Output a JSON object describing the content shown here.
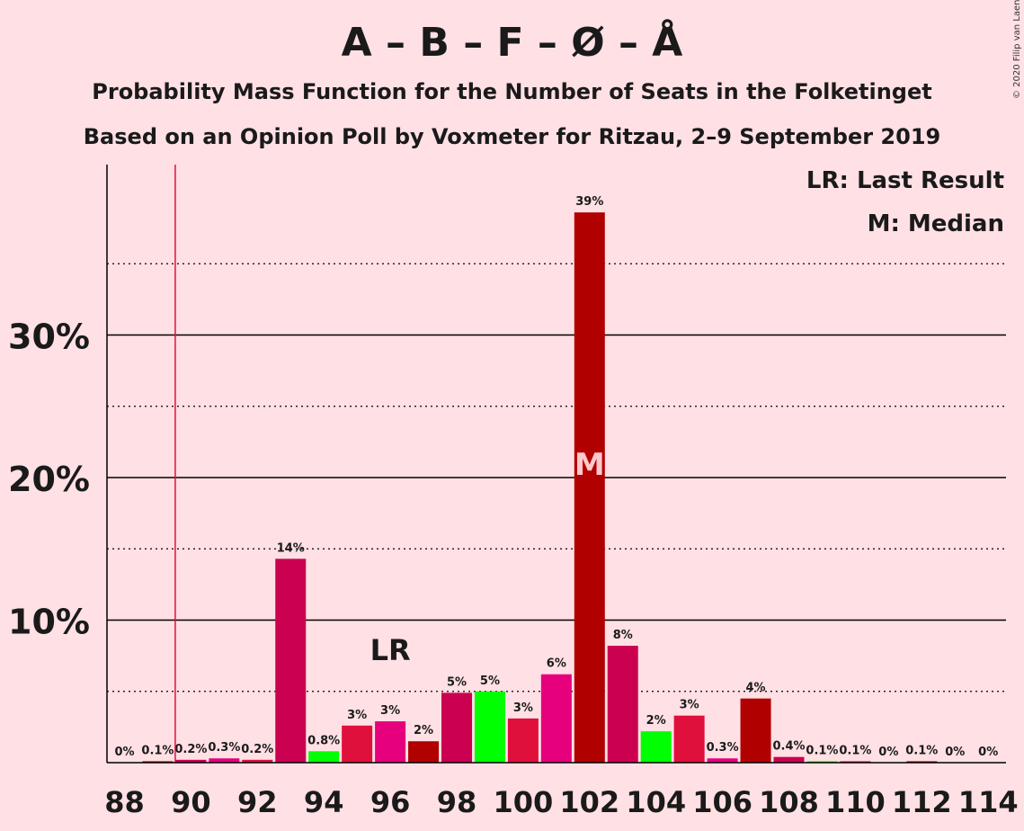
{
  "title": "A – B – F – Ø – Å",
  "subtitle1": "Probability Mass Function for the Number of Seats in the Folketinget",
  "subtitle2": "Based on an Opinion Poll by Voxmeter for Ritzau, 2–9 September 2019",
  "credit": "© 2020 Filip van Laenen",
  "legend": {
    "lr": "LR: Last Result",
    "m": "M: Median"
  },
  "colors": {
    "background": "#ffe0e5",
    "crimson": "#e0103c",
    "dark_red": "#b00000",
    "deep_pink": "#cc0050",
    "magenta": "#e6007e",
    "green": "#00ff00",
    "last_result_line": "#e0103c"
  },
  "chart_data": {
    "type": "bar",
    "x": [
      88,
      89,
      90,
      91,
      92,
      93,
      94,
      95,
      96,
      97,
      98,
      99,
      100,
      101,
      102,
      103,
      104,
      105,
      106,
      107,
      108,
      109,
      110,
      111,
      112,
      113,
      114
    ],
    "values": [
      0,
      0.1,
      0.2,
      0.3,
      0.2,
      14.3,
      0.8,
      2.6,
      2.9,
      1.5,
      4.9,
      5.0,
      3.1,
      6.2,
      38.6,
      8.2,
      2.2,
      3.3,
      0.3,
      4.5,
      0.4,
      0.1,
      0.1,
      0,
      0.1,
      0,
      0
    ],
    "labels": [
      "0%",
      "0.1%",
      "0.2%",
      "0.3%",
      "0.2%",
      "14%",
      "0.8%",
      "3%",
      "3%",
      "2%",
      "5%",
      "5%",
      "3%",
      "6%",
      "39%",
      "8%",
      "2%",
      "3%",
      "0.3%",
      "4%",
      "0.4%",
      "0.1%",
      "0.1%",
      "0%",
      "0.1%",
      "0%",
      "0%"
    ],
    "bar_colors": [
      "crimson",
      "dark_red",
      "deep_pink",
      "magenta",
      "crimson",
      "deep_pink",
      "green",
      "crimson",
      "magenta",
      "dark_red",
      "deep_pink",
      "green",
      "crimson",
      "magenta",
      "dark_red",
      "deep_pink",
      "green",
      "crimson",
      "magenta",
      "dark_red",
      "deep_pink",
      "green",
      "crimson",
      "magenta",
      "dark_red",
      "deep_pink",
      "green"
    ],
    "x_tick_labels": [
      "88",
      "90",
      "92",
      "94",
      "96",
      "98",
      "100",
      "102",
      "104",
      "106",
      "108",
      "110",
      "112",
      "114"
    ],
    "y_tick_labels": [
      "10%",
      "20%",
      "30%"
    ],
    "y_ticks": [
      10,
      20,
      30
    ],
    "ylim": [
      0,
      42
    ],
    "last_result": 89.5,
    "last_result_label": "LR",
    "last_result_label_x": 96,
    "median": 102,
    "median_label": "M",
    "grid": true,
    "legend_position": "top-right"
  }
}
